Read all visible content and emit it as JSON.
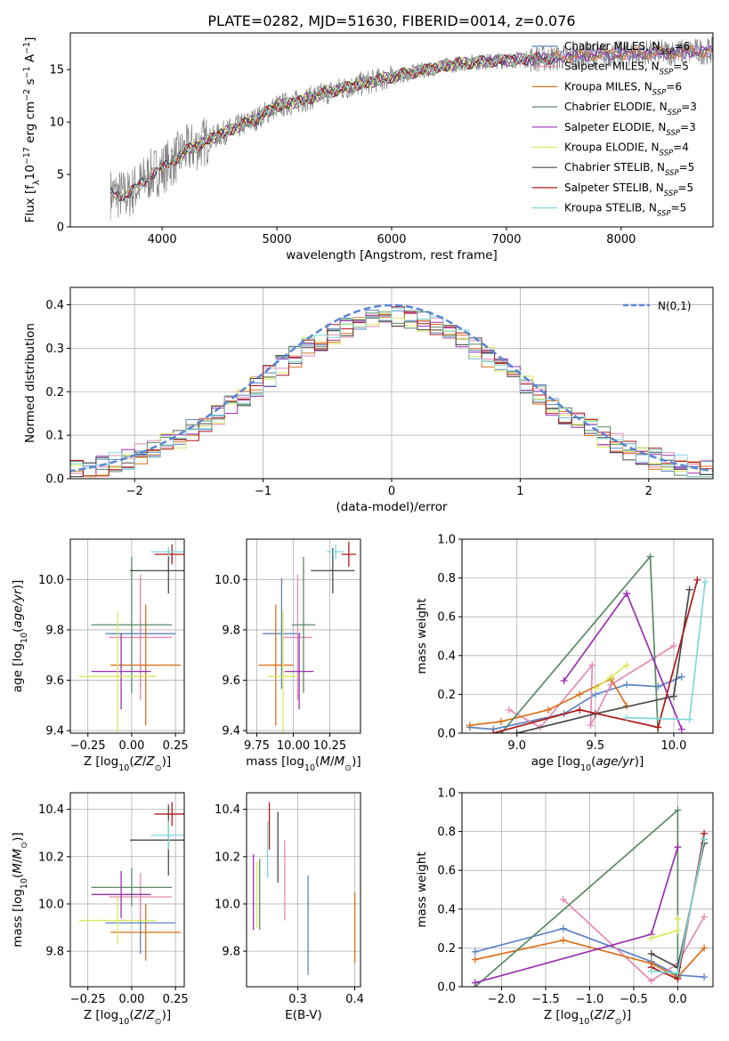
{
  "title": "PLATE=0282, MJD=51630, FIBERID=0014, z=0.076",
  "colors": {
    "Chabrier MILES": "#5b84c4",
    "Salpeter MILES": "#e58bb4",
    "Kroupa MILES": "#d9711b",
    "Chabrier ELODIE": "#5a8a64",
    "Salpeter ELODIE": "#9a2fb0",
    "Kroupa ELODIE": "#d9ea5c",
    "Chabrier STELIB": "#4a4a4a",
    "Salpeter STELIB": "#b01818",
    "Kroupa STELIB": "#7dd9dc",
    "data": "#808080",
    "normal": "#5b84d4"
  },
  "chart_data": [
    {
      "id": "spectrum",
      "type": "line",
      "xlabel": "wavelength [Angstrom, rest frame]",
      "ylabel": "Flux [f_λ10^{-17} erg cm^{-2} s^{-1} A^{-1}]",
      "xlim": [
        3200,
        8800
      ],
      "ylim": [
        0,
        18.5
      ],
      "xticks": [
        "4000",
        "5000",
        "6000",
        "7000",
        "8000"
      ],
      "yticks": [
        "0",
        "5",
        "10",
        "15"
      ],
      "legend": [
        {
          "name": "Chabrier MILES",
          "nssp": "6"
        },
        {
          "name": "Salpeter MILES",
          "nssp": "5"
        },
        {
          "name": "Kroupa MILES",
          "nssp": "6"
        },
        {
          "name": "Chabrier ELODIE",
          "nssp": "3"
        },
        {
          "name": "Salpeter ELODIE",
          "nssp": "3"
        },
        {
          "name": "Kroupa ELODIE",
          "nssp": "4"
        },
        {
          "name": "Chabrier STELIB",
          "nssp": "5"
        },
        {
          "name": "Salpeter STELIB",
          "nssp": "5"
        },
        {
          "name": "Kroupa STELIB",
          "nssp": "5"
        }
      ],
      "legend_prefix": "N",
      "legend_sub": "SSP",
      "continuum": [
        [
          3550,
          3.2
        ],
        [
          3700,
          3.0
        ],
        [
          3800,
          4.0
        ],
        [
          3900,
          5.0
        ],
        [
          4000,
          5.5
        ],
        [
          4200,
          7.2
        ],
        [
          4500,
          8.8
        ],
        [
          4800,
          10.2
        ],
        [
          5000,
          11.5
        ],
        [
          5200,
          12.0
        ],
        [
          5500,
          13.0
        ],
        [
          5800,
          13.8
        ],
        [
          6000,
          14.3
        ],
        [
          6300,
          15.0
        ],
        [
          6600,
          15.6
        ],
        [
          7000,
          15.9
        ],
        [
          7400,
          16.1
        ],
        [
          7700,
          16.4
        ],
        [
          8000,
          16.5
        ],
        [
          8400,
          16.6
        ],
        [
          8800,
          16.8
        ]
      ]
    },
    {
      "id": "residuals",
      "type": "histogram",
      "xlabel": "(data-model)/error",
      "ylabel": "Normed distribution",
      "xlim": [
        -2.5,
        2.5
      ],
      "ylim": [
        0,
        0.44
      ],
      "xticks": [
        "-2",
        "-1",
        "0",
        "1",
        "2"
      ],
      "yticks": [
        "0.0",
        "0.1",
        "0.2",
        "0.3",
        "0.4"
      ],
      "legend": "N(0,1)",
      "bin_width": 0.1
    },
    {
      "id": "age_vs_Z",
      "type": "errorbar",
      "xlabel": "Z [log10(Z/Z⊙)]",
      "ylabel": "age [log10(age/yr)]",
      "xlim": [
        -0.35,
        0.3
      ],
      "ylim": [
        9.39,
        10.16
      ],
      "xticks": [
        "-0.25",
        "0.00",
        "0.25"
      ],
      "yticks": [
        "9.4",
        "9.6",
        "9.8",
        "10.0"
      ],
      "points": [
        {
          "model": "Chabrier MILES",
          "x": 0.05,
          "xerr": 0.2,
          "y": 9.785,
          "yerr": 0.22
        },
        {
          "model": "Salpeter MILES",
          "x": 0.05,
          "xerr": 0.18,
          "y": 9.77,
          "yerr": 0.25
        },
        {
          "model": "Kroupa MILES",
          "x": 0.08,
          "xerr": 0.2,
          "y": 9.66,
          "yerr": 0.24
        },
        {
          "model": "Chabrier ELODIE",
          "x": 0.0,
          "xerr": 0.23,
          "y": 9.82,
          "yerr": 0.27
        },
        {
          "model": "Salpeter ELODIE",
          "x": -0.06,
          "xerr": 0.17,
          "y": 9.635,
          "yerr": 0.15
        },
        {
          "model": "Kroupa ELODIE",
          "x": -0.08,
          "xerr": 0.22,
          "y": 9.615,
          "yerr": 0.26
        },
        {
          "model": "Chabrier STELIB",
          "x": 0.21,
          "xerr": 0.22,
          "y": 10.035,
          "yerr": 0.09
        },
        {
          "model": "Salpeter STELIB",
          "x": 0.23,
          "xerr": 0.1,
          "y": 10.1,
          "yerr": 0.04
        },
        {
          "model": "Kroupa STELIB",
          "x": 0.21,
          "xerr": 0.1,
          "y": 10.11,
          "yerr": 0.02
        }
      ]
    },
    {
      "id": "age_vs_mass",
      "type": "errorbar",
      "xlabel": "mass [log10(M/M⊙)]",
      "ylabel": "",
      "xlim": [
        9.68,
        10.46
      ],
      "ylim": [
        9.39,
        10.16
      ],
      "xticks": [
        "9.75",
        "10.00",
        "10.25"
      ],
      "yticks": [
        "9.4",
        "9.6",
        "9.8",
        "10.0"
      ],
      "points": [
        {
          "model": "Chabrier MILES",
          "x": 9.92,
          "xerr": 0.13,
          "y": 9.785,
          "yerr": 0.22
        },
        {
          "model": "Salpeter MILES",
          "x": 10.03,
          "xerr": 0.1,
          "y": 9.77,
          "yerr": 0.25
        },
        {
          "model": "Kroupa MILES",
          "x": 9.88,
          "xerr": 0.12,
          "y": 9.66,
          "yerr": 0.24
        },
        {
          "model": "Chabrier ELODIE",
          "x": 10.07,
          "xerr": 0.08,
          "y": 9.82,
          "yerr": 0.27
        },
        {
          "model": "Salpeter ELODIE",
          "x": 10.04,
          "xerr": 0.1,
          "y": 9.635,
          "yerr": 0.15
        },
        {
          "model": "Kroupa ELODIE",
          "x": 9.93,
          "xerr": 0.1,
          "y": 9.615,
          "yerr": 0.26
        },
        {
          "model": "Chabrier STELIB",
          "x": 10.27,
          "xerr": 0.15,
          "y": 10.035,
          "yerr": 0.09
        },
        {
          "model": "Salpeter STELIB",
          "x": 10.38,
          "xerr": 0.05,
          "y": 10.1,
          "yerr": 0.05
        },
        {
          "model": "Kroupa STELIB",
          "x": 10.29,
          "xerr": 0.06,
          "y": 10.11,
          "yerr": 0.03
        }
      ]
    },
    {
      "id": "mass_vs_Z",
      "type": "errorbar",
      "xlabel": "Z [log10(Z/Z⊙)]",
      "ylabel": "mass [log10(M/M⊙)]",
      "xlim": [
        -0.35,
        0.3
      ],
      "ylim": [
        9.65,
        10.47
      ],
      "xticks": [
        "-0.25",
        "0.00",
        "0.25"
      ],
      "yticks": [
        "9.8",
        "10.0",
        "10.2",
        "10.4"
      ],
      "points": [
        {
          "model": "Chabrier MILES",
          "x": 0.05,
          "xerr": 0.2,
          "y": 9.92,
          "yerr": 0.13
        },
        {
          "model": "Salpeter MILES",
          "x": 0.05,
          "xerr": 0.18,
          "y": 10.03,
          "yerr": 0.1
        },
        {
          "model": "Kroupa MILES",
          "x": 0.08,
          "xerr": 0.2,
          "y": 9.88,
          "yerr": 0.12
        },
        {
          "model": "Chabrier ELODIE",
          "x": 0.0,
          "xerr": 0.23,
          "y": 10.07,
          "yerr": 0.08
        },
        {
          "model": "Salpeter ELODIE",
          "x": -0.06,
          "xerr": 0.17,
          "y": 10.04,
          "yerr": 0.1
        },
        {
          "model": "Kroupa ELODIE",
          "x": -0.08,
          "xerr": 0.22,
          "y": 9.93,
          "yerr": 0.1
        },
        {
          "model": "Chabrier STELIB",
          "x": 0.21,
          "xerr": 0.22,
          "y": 10.27,
          "yerr": 0.15
        },
        {
          "model": "Salpeter STELIB",
          "x": 0.23,
          "xerr": 0.1,
          "y": 10.38,
          "yerr": 0.05
        },
        {
          "model": "Kroupa STELIB",
          "x": 0.21,
          "xerr": 0.1,
          "y": 10.29,
          "yerr": 0.06
        }
      ]
    },
    {
      "id": "mass_vs_ebv",
      "type": "errorbar",
      "xlabel": "E(B-V)",
      "ylabel": "",
      "xlim": [
        0.21,
        0.41
      ],
      "ylim": [
        9.65,
        10.47
      ],
      "xticks": [
        "0.3",
        "0.4"
      ],
      "yticks": [
        "9.8",
        "10.0",
        "10.2",
        "10.4"
      ],
      "points": [
        {
          "model": "Chabrier MILES",
          "x": 0.318,
          "y": 9.91,
          "yerr": 0.21
        },
        {
          "model": "Salpeter MILES",
          "x": 0.277,
          "y": 10.1,
          "yerr": 0.17
        },
        {
          "model": "Kroupa MILES",
          "x": 0.4,
          "y": 9.9,
          "yerr": 0.15
        },
        {
          "model": "Chabrier ELODIE",
          "x": 0.233,
          "y": 10.04,
          "yerr": 0.15
        },
        {
          "model": "Salpeter ELODIE",
          "x": 0.222,
          "y": 10.05,
          "yerr": 0.16
        },
        {
          "model": "Kroupa ELODIE",
          "x": 0.228,
          "y": 10.04,
          "yerr": 0.14
        },
        {
          "model": "Chabrier STELIB",
          "x": 0.265,
          "y": 10.24,
          "yerr": 0.15
        },
        {
          "model": "Salpeter STELIB",
          "x": 0.25,
          "y": 10.33,
          "yerr": 0.1
        },
        {
          "model": "Kroupa STELIB",
          "x": 0.247,
          "y": 10.23,
          "yerr": 0.12
        }
      ]
    },
    {
      "id": "weight_vs_age",
      "type": "line",
      "xlabel": "age [log10(age/yr)]",
      "ylabel": "mass weight",
      "xlim": [
        8.65,
        10.25
      ],
      "ylim": [
        0.0,
        1.0
      ],
      "xticks": [
        "9.0",
        "9.5",
        "10.0"
      ],
      "yticks": [
        "0.0",
        "0.2",
        "0.4",
        "0.6",
        "0.8",
        "1.0"
      ],
      "series": [
        {
          "name": "Chabrier MILES",
          "x": [
            8.7,
            8.85,
            9.3,
            9.5,
            9.7,
            9.9,
            10.05
          ],
          "y": [
            0.03,
            0.02,
            0.1,
            0.2,
            0.25,
            0.24,
            0.29
          ]
        },
        {
          "name": "Salpeter MILES",
          "x": [
            8.95,
            9.15,
            9.48,
            9.47,
            9.6,
            10.0
          ],
          "y": [
            0.12,
            0.03,
            0.35,
            0.04,
            0.25,
            0.45
          ]
        },
        {
          "name": "Kroupa MILES",
          "x": [
            8.7,
            8.9,
            9.2,
            9.4,
            9.6,
            9.7
          ],
          "y": [
            0.04,
            0.06,
            0.12,
            0.2,
            0.28,
            0.14
          ]
        },
        {
          "name": "Chabrier ELODIE",
          "x": [
            8.9,
            9.85,
            9.9
          ],
          "y": [
            0.0,
            0.91,
            0.0
          ]
        },
        {
          "name": "Salpeter ELODIE",
          "x": [
            9.3,
            9.7,
            10.05
          ],
          "y": [
            0.27,
            0.72,
            0.02
          ]
        },
        {
          "name": "Kroupa ELODIE",
          "x": [
            9.5,
            9.6,
            9.7
          ],
          "y": [
            0.23,
            0.29,
            0.35
          ]
        },
        {
          "name": "Chabrier STELIB",
          "x": [
            9.0,
            9.5,
            10.0,
            10.1
          ],
          "y": [
            0.0,
            0.1,
            0.19,
            0.74
          ]
        },
        {
          "name": "Salpeter STELIB",
          "x": [
            8.85,
            9.4,
            9.9,
            10.15
          ],
          "y": [
            0.0,
            0.12,
            0.03,
            0.79
          ]
        },
        {
          "name": "Kroupa STELIB",
          "x": [
            9.7,
            10.1,
            10.2
          ],
          "y": [
            0.08,
            0.07,
            0.78
          ]
        }
      ]
    },
    {
      "id": "weight_vs_Z",
      "type": "line",
      "xlabel": "Z [log10(Z/Z⊙)]",
      "ylabel": "mass weight",
      "xlim": [
        -2.45,
        0.4
      ],
      "ylim": [
        0.0,
        1.0
      ],
      "xticks": [
        "-2.0",
        "-1.5",
        "-1.0",
        "-0.5",
        "0.0"
      ],
      "yticks": [
        "0.0",
        "0.2",
        "0.4",
        "0.6",
        "0.8",
        "1.0"
      ],
      "series": [
        {
          "name": "Chabrier MILES",
          "x": [
            -2.3,
            -1.3,
            -0.3,
            0.0,
            0.3
          ],
          "y": [
            0.18,
            0.3,
            0.13,
            0.06,
            0.05
          ]
        },
        {
          "name": "Salpeter MILES",
          "x": [
            -1.3,
            -0.3,
            0.0,
            0.3
          ],
          "y": [
            0.45,
            0.03,
            0.12,
            0.36
          ]
        },
        {
          "name": "Kroupa MILES",
          "x": [
            -2.3,
            -1.3,
            -0.3,
            0.0,
            0.3
          ],
          "y": [
            0.14,
            0.24,
            0.12,
            0.05,
            0.2
          ]
        },
        {
          "name": "Chabrier ELODIE",
          "x": [
            -2.3,
            0.0,
            0.0
          ],
          "y": [
            0.0,
            0.91,
            0.05
          ]
        },
        {
          "name": "Salpeter ELODIE",
          "x": [
            -2.3,
            -0.3,
            0.0
          ],
          "y": [
            0.02,
            0.27,
            0.72
          ]
        },
        {
          "name": "Kroupa ELODIE",
          "x": [
            -0.3,
            0.0,
            0.0
          ],
          "y": [
            0.25,
            0.29,
            0.35
          ]
        },
        {
          "name": "Chabrier STELIB",
          "x": [
            -0.3,
            0.0,
            0.3
          ],
          "y": [
            0.17,
            0.1,
            0.74
          ]
        },
        {
          "name": "Salpeter STELIB",
          "x": [
            -0.3,
            0.0,
            0.3
          ],
          "y": [
            0.1,
            0.04,
            0.79
          ]
        },
        {
          "name": "Kroupa STELIB",
          "x": [
            -0.3,
            0.0,
            0.3
          ],
          "y": [
            0.08,
            0.07,
            0.76
          ]
        }
      ]
    }
  ]
}
